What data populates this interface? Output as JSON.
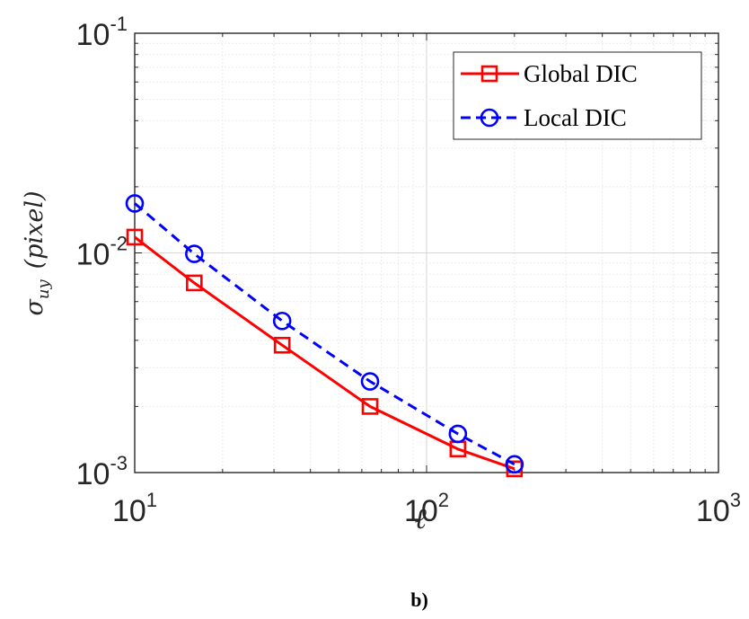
{
  "chart_data": {
    "type": "line",
    "xscale": "log",
    "yscale": "log",
    "xlim": [
      10,
      1000
    ],
    "ylim": [
      0.001,
      0.1
    ],
    "grid": true,
    "minor_grid": true,
    "legend_position": "top-right",
    "xlabel": "ℓ",
    "ylabel": {
      "sigma": "σ",
      "subscript": "uy",
      "unit": "(pixel)"
    },
    "x_ticks": [
      {
        "value": 10,
        "base": "10",
        "exp": "1"
      },
      {
        "value": 100,
        "base": "10",
        "exp": "2"
      },
      {
        "value": 1000,
        "base": "10",
        "exp": "3"
      }
    ],
    "y_ticks": [
      {
        "value": 0.001,
        "base": "10",
        "exp": "-3"
      },
      {
        "value": 0.01,
        "base": "10",
        "exp": "-2"
      },
      {
        "value": 0.1,
        "base": "10",
        "exp": "-1"
      }
    ],
    "series": [
      {
        "name": "Global DIC",
        "color": "#ff0000",
        "line_style": "solid",
        "marker": "square",
        "x": [
          10,
          16,
          32,
          64,
          128,
          200
        ],
        "y": [
          0.0118,
          0.0073,
          0.0038,
          0.002,
          0.00128,
          0.00104
        ]
      },
      {
        "name": "Local DIC",
        "color": "#0000ff",
        "line_style": "dashed",
        "marker": "circle",
        "x": [
          10,
          16,
          32,
          64,
          128,
          200
        ],
        "y": [
          0.0168,
          0.0099,
          0.0049,
          0.0026,
          0.0015,
          0.00109
        ]
      }
    ]
  },
  "caption": "b)"
}
